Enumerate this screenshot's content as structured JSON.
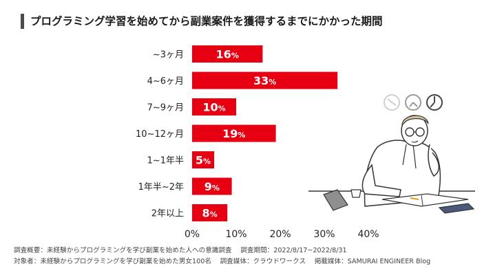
{
  "title": "プログラミング学習を始めてから副業案件を獲得するまでにかかった期間",
  "chart_data": {
    "type": "bar",
    "orientation": "horizontal",
    "categories": [
      "~3ヶ月",
      "4~6ヶ月",
      "7~9ヶ月",
      "10~12ヶ月",
      "1~1年半",
      "1年半~2年",
      "2年以上"
    ],
    "values": [
      16,
      33,
      10,
      19,
      5,
      9,
      8
    ],
    "value_suffix": "%",
    "xlim": [
      0,
      40
    ],
    "xticks": [
      0,
      10,
      20,
      30,
      40
    ],
    "xtick_labels": [
      "0%",
      "10%",
      "20%",
      "30%",
      "40%"
    ],
    "bar_color": "#e60012",
    "label_color": "#ffffff",
    "grid": false
  },
  "footer": {
    "survey_summary": "調査概要：未経験からプログラミングを学び副業を始めた人への意識調査",
    "survey_period": "調査期間：2022/8/17~2022/8/31",
    "target": "対象者：未経験からプログラミングを学び副業を始めた男女100名",
    "survey_medium": "調査媒体：クラウドワークス",
    "publication": "掲載媒体：SAMURAI ENGINEER Blog"
  }
}
